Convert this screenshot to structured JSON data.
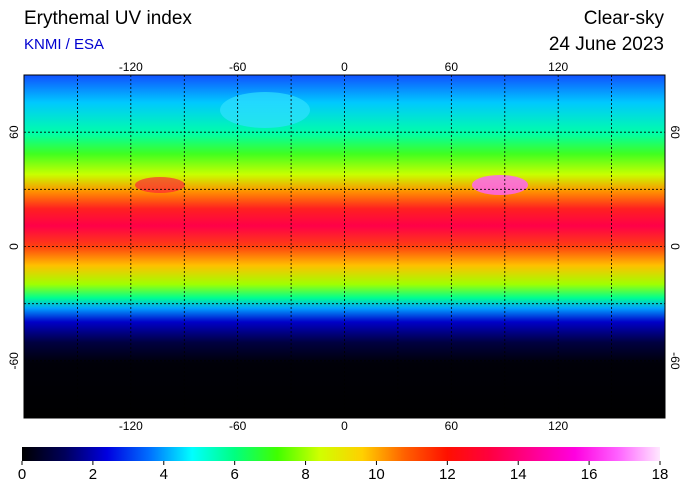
{
  "header": {
    "title": "Erythemal UV index",
    "source": "KNMI / ESA",
    "condition": "Clear-sky",
    "date": "24 June 2023"
  },
  "map": {
    "xlim": [
      -180,
      180
    ],
    "ylim": [
      -90,
      90
    ],
    "xticks": [
      -120,
      -60,
      0,
      60,
      120
    ],
    "yticks": [
      -60,
      0,
      60
    ],
    "grid": true
  },
  "colorbar": {
    "lim": [
      0,
      18
    ],
    "ticks": [
      0,
      2,
      4,
      6,
      8,
      10,
      12,
      14,
      16,
      18
    ],
    "colors": [
      "#000000",
      "#00005a",
      "#0000e0",
      "#0070ff",
      "#00ffff",
      "#00ff80",
      "#40ff00",
      "#d0ff00",
      "#ffd000",
      "#ff6000",
      "#ff1000",
      "#ff0040",
      "#ff0090",
      "#ff00e0",
      "#ff60ff",
      "#ffe8ff"
    ]
  }
}
